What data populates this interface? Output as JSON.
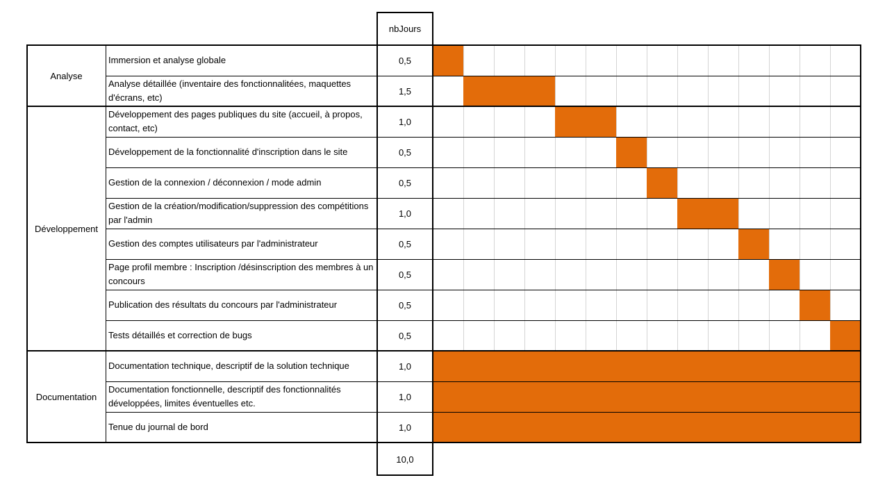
{
  "header": {
    "days_label": "nbJours"
  },
  "phases": [
    {
      "label": "Analyse",
      "start": 0,
      "end": 2
    },
    {
      "label": "Développement",
      "start": 2,
      "end": 10
    },
    {
      "label": "Documentation",
      "start": 10,
      "end": 13
    }
  ],
  "tasks": [
    {
      "name": "Immersion et analyse globale",
      "days": "0,5"
    },
    {
      "name": "Analyse détaillée (inventaire des fonctionnalitées, maquettes d'écrans, etc)",
      "days": "1,5"
    },
    {
      "name": "Développement des pages publiques du site (accueil, à propos, contact, etc)",
      "days": "1,0"
    },
    {
      "name": "Développement de la fonctionnalité d'inscription dans le site",
      "days": "0,5"
    },
    {
      "name": "Gestion de la connexion / déconnexion / mode admin",
      "days": "0,5"
    },
    {
      "name": "Gestion de la création/modification/suppression des compétitions par l'admin",
      "days": "1,0"
    },
    {
      "name": "Gestion des comptes utilisateurs par l'administrateur",
      "days": "0,5"
    },
    {
      "name": "Page profil membre : Inscription /désinscription des membres à un concours",
      "days": "0,5"
    },
    {
      "name": "Publication des résultats du concours par l'administrateur",
      "days": "0,5"
    },
    {
      "name": "Tests détaillés et correction de bugs",
      "days": "0,5"
    },
    {
      "name": "Documentation technique, descriptif de la solution technique",
      "days": "1,0"
    },
    {
      "name": "Documentation fonctionnelle, descriptif des fonctionnalités développées, limites éventuelles etc.",
      "days": "1,0"
    },
    {
      "name": "Tenue du journal de bord",
      "days": "1,0"
    }
  ],
  "total_days": "10,0",
  "chart_data": {
    "type": "gantt",
    "unit": "half-day slots",
    "total_slots": 14,
    "bar_color": "#e36c0a",
    "bars": [
      {
        "task": "Immersion et analyse globale",
        "start": 0,
        "end": 1
      },
      {
        "task": "Analyse détaillée (inventaire des fonctionnalitées, maquettes d'écrans, etc)",
        "start": 1,
        "end": 4
      },
      {
        "task": "Développement des pages publiques du site (accueil, à propos, contact, etc)",
        "start": 4,
        "end": 6
      },
      {
        "task": "Développement de la fonctionnalité d'inscription dans le site",
        "start": 6,
        "end": 7
      },
      {
        "task": "Gestion de la connexion / déconnexion / mode admin",
        "start": 7,
        "end": 8
      },
      {
        "task": "Gestion de la création/modification/suppression des compétitions par l'admin",
        "start": 8,
        "end": 10
      },
      {
        "task": "Gestion des comptes utilisateurs par l'administrateur",
        "start": 10,
        "end": 11
      },
      {
        "task": "Page profil membre : Inscription /désinscription des membres à un concours",
        "start": 11,
        "end": 12
      },
      {
        "task": "Publication des résultats du concours par l'administrateur",
        "start": 12,
        "end": 13
      },
      {
        "task": "Tests détaillés et correction de bugs",
        "start": 13,
        "end": 14
      },
      {
        "task": "Documentation technique, descriptif de la solution technique",
        "start": 0,
        "end": 14
      },
      {
        "task": "Documentation fonctionnelle, descriptif des fonctionnalités développées, limites éventuelles etc.",
        "start": 0,
        "end": 14
      },
      {
        "task": "Tenue du journal de bord",
        "start": 0,
        "end": 14
      }
    ]
  }
}
